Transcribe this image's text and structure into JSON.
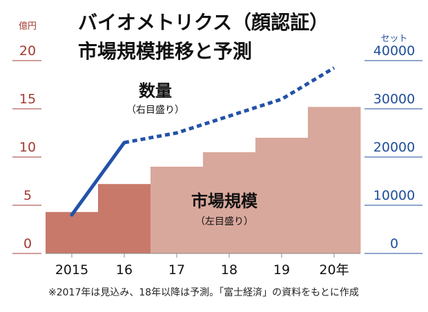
{
  "chart_data": {
    "type": "bar+line",
    "title_line1": "バイオメトリクス（顔認証）",
    "title_line2": "市場規模推移と予測",
    "left_axis": {
      "unit": "億円",
      "ticks": [
        0,
        5,
        10,
        15,
        20
      ],
      "ylim": [
        0,
        20
      ]
    },
    "right_axis": {
      "unit": "セット",
      "ticks": [
        0,
        10000,
        20000,
        30000,
        40000
      ],
      "ylim": [
        0,
        40000
      ]
    },
    "categories": [
      "2015",
      "16",
      "17",
      "18",
      "19",
      "20年"
    ],
    "bar_series": {
      "name": "市場規模",
      "note": "（左目盛り）",
      "values": [
        4.3,
        7.2,
        9.0,
        10.5,
        12.0,
        15.2
      ],
      "forecast_from_index": 2,
      "color_actual": "#c8796a",
      "color_forecast": "#d9a89c"
    },
    "line_series": {
      "name": "数量",
      "note": "（右目盛り）",
      "values": [
        8000,
        23000,
        25000,
        28500,
        32000,
        38500
      ],
      "dashed_from_index": 1,
      "color": "#2352a8"
    },
    "footnote": "※2017年は見込み、18年以降は予測。「富士経済」の資料をもとに作成"
  }
}
